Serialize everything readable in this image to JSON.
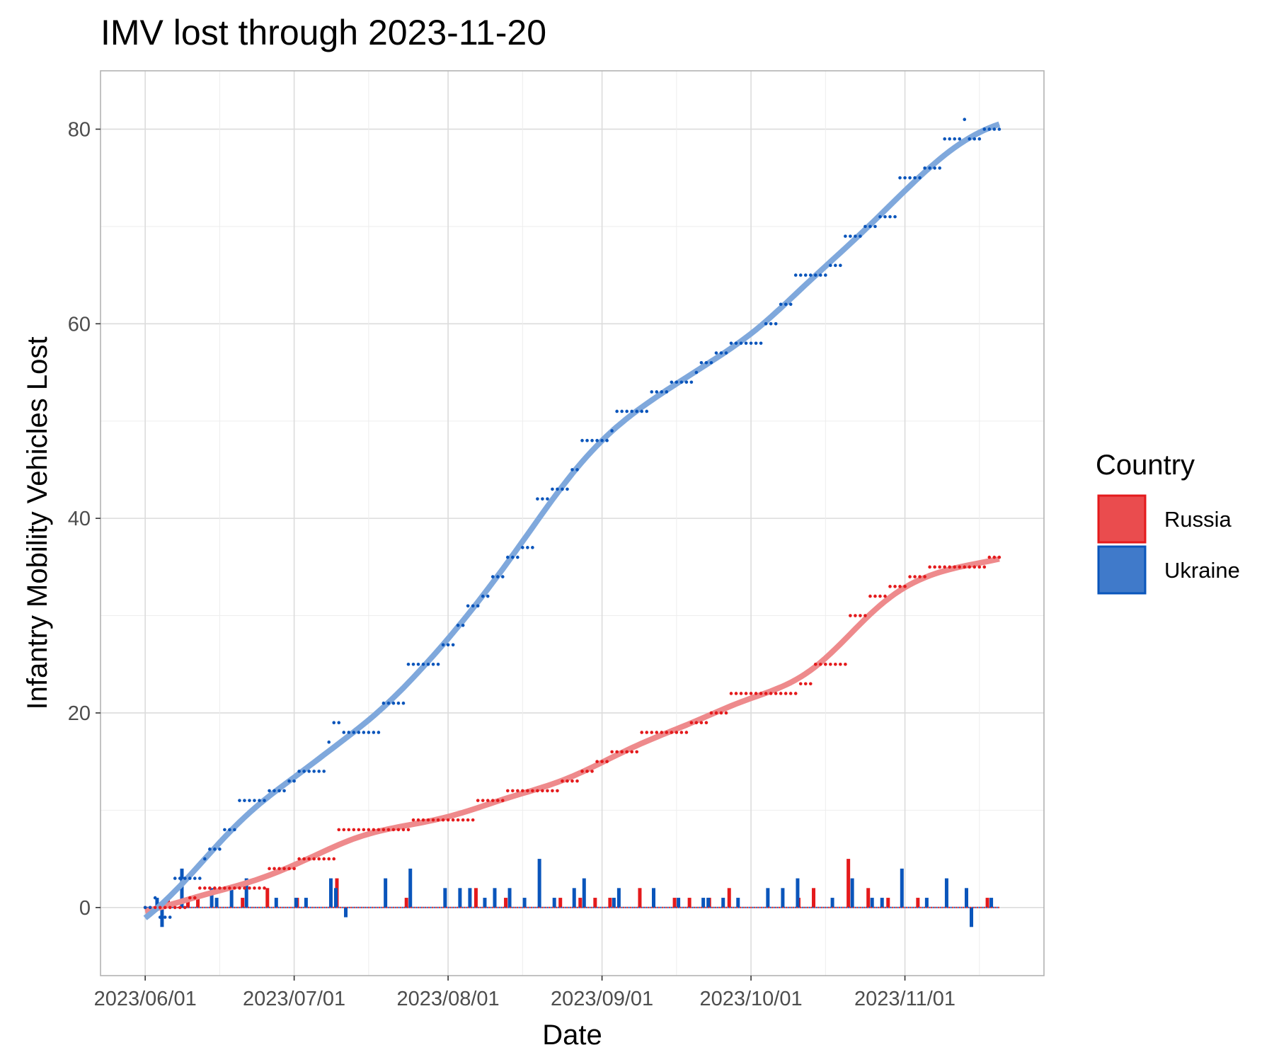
{
  "chart_data": {
    "type": "line",
    "title": "IMV lost through 2023-11-20",
    "xlabel": "Date",
    "ylabel": "Infantry Mobility Vehicles Lost",
    "x_ticks": [
      "2023/06/01",
      "2023/07/01",
      "2023/08/01",
      "2023/09/01",
      "2023/10/01",
      "2023/11/01"
    ],
    "y_ticks": [
      0,
      20,
      40,
      60,
      80
    ],
    "ylim": [
      -7,
      86
    ],
    "xlim": [
      "2023-05-23",
      "2023-11-29"
    ],
    "grid": true,
    "legend": {
      "title": "Country",
      "position": "right",
      "entries": [
        {
          "name": "Russia",
          "color": "#e41a1c"
        },
        {
          "name": "Ukraine",
          "color": "#0a55bb"
        }
      ]
    },
    "series": [
      {
        "name": "Russia",
        "color": "#e41a1c",
        "smooth_color": "#ee8a8c",
        "cumulative": [
          [
            "2023-06-01",
            0
          ],
          [
            "2023-06-06",
            0
          ],
          [
            "2023-06-10",
            1
          ],
          [
            "2023-06-12",
            2
          ],
          [
            "2023-06-22",
            2
          ],
          [
            "2023-06-26",
            4
          ],
          [
            "2023-07-02",
            5
          ],
          [
            "2023-07-10",
            8
          ],
          [
            "2023-07-22",
            8
          ],
          [
            "2023-07-25",
            9
          ],
          [
            "2023-08-05",
            9
          ],
          [
            "2023-08-07",
            11
          ],
          [
            "2023-08-13",
            12
          ],
          [
            "2023-08-23",
            12
          ],
          [
            "2023-08-24",
            13
          ],
          [
            "2023-08-28",
            14
          ],
          [
            "2023-08-31",
            15
          ],
          [
            "2023-09-03",
            16
          ],
          [
            "2023-09-09",
            18
          ],
          [
            "2023-09-15",
            18
          ],
          [
            "2023-09-19",
            19
          ],
          [
            "2023-09-23",
            20
          ],
          [
            "2023-09-27",
            22
          ],
          [
            "2023-10-09",
            22
          ],
          [
            "2023-10-11",
            23
          ],
          [
            "2023-10-14",
            25
          ],
          [
            "2023-10-21",
            30
          ],
          [
            "2023-10-25",
            32
          ],
          [
            "2023-10-29",
            33
          ],
          [
            "2023-11-02",
            34
          ],
          [
            "2023-11-06",
            35
          ],
          [
            "2023-11-17",
            35
          ],
          [
            "2023-11-18",
            36
          ],
          [
            "2023-11-20",
            36
          ]
        ],
        "daily": [
          [
            "2023-06-06",
            1
          ],
          [
            "2023-06-10",
            1
          ],
          [
            "2023-06-12",
            1
          ],
          [
            "2023-06-21",
            1
          ],
          [
            "2023-06-26",
            2
          ],
          [
            "2023-07-02",
            1
          ],
          [
            "2023-07-10",
            3
          ],
          [
            "2023-07-24",
            1
          ],
          [
            "2023-08-07",
            2
          ],
          [
            "2023-08-13",
            1
          ],
          [
            "2023-08-24",
            1
          ],
          [
            "2023-08-28",
            1
          ],
          [
            "2023-08-31",
            1
          ],
          [
            "2023-09-03",
            1
          ],
          [
            "2023-09-09",
            2
          ],
          [
            "2023-09-16",
            1
          ],
          [
            "2023-09-19",
            1
          ],
          [
            "2023-09-23",
            1
          ],
          [
            "2023-09-27",
            2
          ],
          [
            "2023-10-11",
            1
          ],
          [
            "2023-10-14",
            2
          ],
          [
            "2023-10-21",
            5
          ],
          [
            "2023-10-25",
            2
          ],
          [
            "2023-10-29",
            1
          ],
          [
            "2023-11-04",
            1
          ],
          [
            "2023-11-18",
            1
          ]
        ]
      },
      {
        "name": "Ukraine",
        "color": "#0a55bb",
        "smooth_color": "#7fa8dc",
        "cumulative": [
          [
            "2023-06-01",
            0
          ],
          [
            "2023-06-03",
            1
          ],
          [
            "2023-06-04",
            -1
          ],
          [
            "2023-06-07",
            3
          ],
          [
            "2023-06-13",
            5
          ],
          [
            "2023-06-14",
            6
          ],
          [
            "2023-06-17",
            8
          ],
          [
            "2023-06-20",
            11
          ],
          [
            "2023-06-26",
            12
          ],
          [
            "2023-06-30",
            13
          ],
          [
            "2023-07-02",
            14
          ],
          [
            "2023-07-08",
            17
          ],
          [
            "2023-07-09",
            19
          ],
          [
            "2023-07-11",
            18
          ],
          [
            "2023-07-18",
            18
          ],
          [
            "2023-07-19",
            21
          ],
          [
            "2023-07-24",
            25
          ],
          [
            "2023-07-31",
            27
          ],
          [
            "2023-08-03",
            29
          ],
          [
            "2023-08-05",
            31
          ],
          [
            "2023-08-08",
            32
          ],
          [
            "2023-08-10",
            34
          ],
          [
            "2023-08-13",
            36
          ],
          [
            "2023-08-16",
            37
          ],
          [
            "2023-08-19",
            42
          ],
          [
            "2023-08-22",
            43
          ],
          [
            "2023-08-26",
            45
          ],
          [
            "2023-08-28",
            48
          ],
          [
            "2023-09-03",
            49
          ],
          [
            "2023-09-04",
            51
          ],
          [
            "2023-09-10",
            51
          ],
          [
            "2023-09-11",
            53
          ],
          [
            "2023-09-15",
            54
          ],
          [
            "2023-09-20",
            55
          ],
          [
            "2023-09-21",
            56
          ],
          [
            "2023-09-24",
            57
          ],
          [
            "2023-09-27",
            58
          ],
          [
            "2023-10-03",
            58
          ],
          [
            "2023-10-04",
            60
          ],
          [
            "2023-10-07",
            62
          ],
          [
            "2023-10-10",
            65
          ],
          [
            "2023-10-16",
            65
          ],
          [
            "2023-10-17",
            66
          ],
          [
            "2023-10-20",
            69
          ],
          [
            "2023-10-24",
            70
          ],
          [
            "2023-10-27",
            71
          ],
          [
            "2023-10-31",
            75
          ],
          [
            "2023-11-05",
            76
          ],
          [
            "2023-11-09",
            79
          ],
          [
            "2023-11-12",
            79
          ],
          [
            "2023-11-13",
            81
          ],
          [
            "2023-11-14",
            79
          ],
          [
            "2023-11-17",
            80
          ],
          [
            "2023-11-20",
            80
          ]
        ],
        "daily": [
          [
            "2023-06-03",
            1
          ],
          [
            "2023-06-04",
            -2
          ],
          [
            "2023-06-08",
            4
          ],
          [
            "2023-06-14",
            2
          ],
          [
            "2023-06-15",
            1
          ],
          [
            "2023-06-18",
            2
          ],
          [
            "2023-06-21",
            3
          ],
          [
            "2023-06-27",
            1
          ],
          [
            "2023-07-01",
            1
          ],
          [
            "2023-07-03",
            1
          ],
          [
            "2023-07-08",
            3
          ],
          [
            "2023-07-09",
            2
          ],
          [
            "2023-07-11",
            -1
          ],
          [
            "2023-07-19",
            3
          ],
          [
            "2023-07-24",
            4
          ],
          [
            "2023-07-31",
            2
          ],
          [
            "2023-08-03",
            2
          ],
          [
            "2023-08-05",
            2
          ],
          [
            "2023-08-08",
            1
          ],
          [
            "2023-08-10",
            2
          ],
          [
            "2023-08-13",
            2
          ],
          [
            "2023-08-16",
            1
          ],
          [
            "2023-08-19",
            5
          ],
          [
            "2023-08-22",
            1
          ],
          [
            "2023-08-26",
            2
          ],
          [
            "2023-08-28",
            3
          ],
          [
            "2023-09-03",
            1
          ],
          [
            "2023-09-04",
            2
          ],
          [
            "2023-09-11",
            2
          ],
          [
            "2023-09-16",
            1
          ],
          [
            "2023-09-21",
            1
          ],
          [
            "2023-09-22",
            1
          ],
          [
            "2023-09-25",
            1
          ],
          [
            "2023-09-28",
            1
          ],
          [
            "2023-10-04",
            2
          ],
          [
            "2023-10-07",
            2
          ],
          [
            "2023-10-10",
            3
          ],
          [
            "2023-10-17",
            1
          ],
          [
            "2023-10-21",
            3
          ],
          [
            "2023-10-25",
            1
          ],
          [
            "2023-10-27",
            1
          ],
          [
            "2023-10-31",
            4
          ],
          [
            "2023-11-05",
            1
          ],
          [
            "2023-11-09",
            3
          ],
          [
            "2023-11-13",
            2
          ],
          [
            "2023-11-14",
            -2
          ],
          [
            "2023-11-18",
            1
          ]
        ]
      }
    ]
  }
}
